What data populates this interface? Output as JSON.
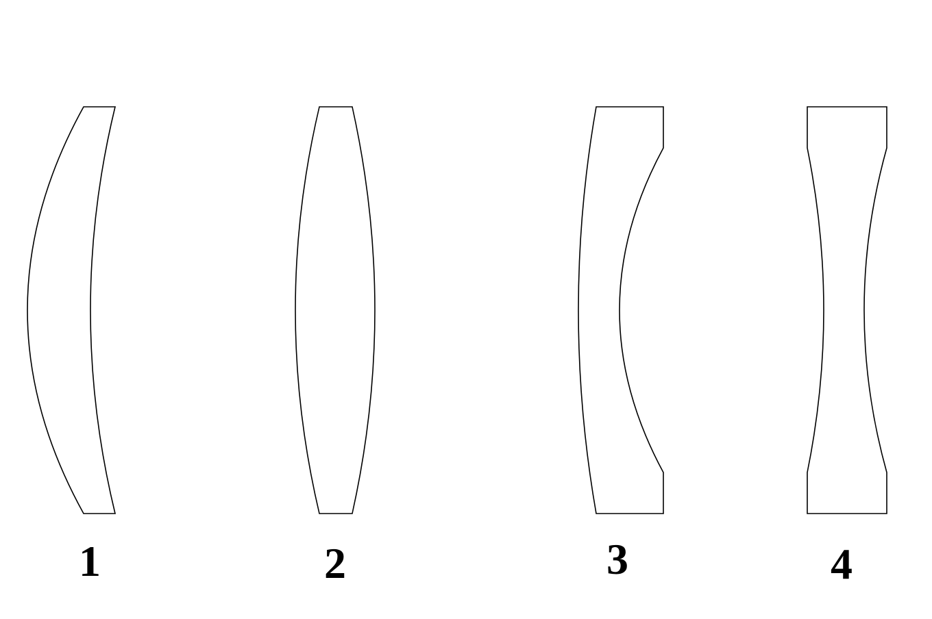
{
  "diagram": {
    "stroke_color": "#000000",
    "fill_color": "#ffffff",
    "lenses": [
      {
        "label": "1"
      },
      {
        "label": "2"
      },
      {
        "label": "3"
      },
      {
        "label": "4"
      }
    ]
  }
}
